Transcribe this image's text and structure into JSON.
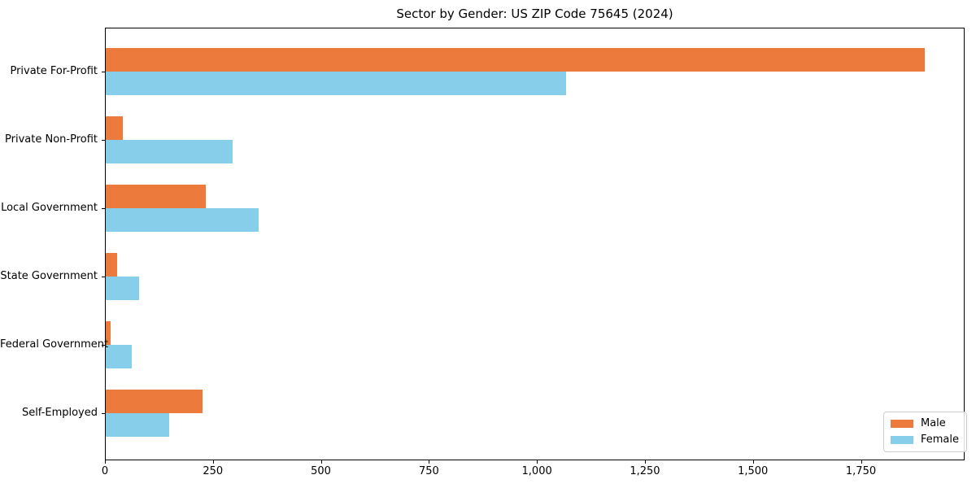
{
  "title": "Sector by Gender: US ZIP Code 75645 (2024)",
  "chart_data": {
    "type": "bar",
    "orientation": "horizontal",
    "title": "Sector by Gender: US ZIP Code 75645 (2024)",
    "categories": [
      "Private For-Profit",
      "Private Non-Profit",
      "Local Government",
      "State Government",
      "Federal Government",
      "Self-Employed"
    ],
    "series": [
      {
        "name": "Male",
        "color": "#ec7a3c",
        "values": [
          1895,
          40,
          232,
          26,
          11,
          224
        ]
      },
      {
        "name": "Female",
        "color": "#87ceeb",
        "values": [
          1065,
          294,
          354,
          77,
          60,
          147
        ]
      }
    ],
    "xlabel": "",
    "ylabel": "",
    "xlim": [
      0,
      1990
    ],
    "xticks": [
      0,
      250,
      500,
      750,
      1000,
      1250,
      1500,
      1750
    ],
    "xtick_labels": [
      "0",
      "250",
      "500",
      "750",
      "1,000",
      "1,250",
      "1,500",
      "1,750"
    ],
    "grid": false,
    "legend_position": "lower right",
    "bar_height": 0.35,
    "axis_color": "#000000",
    "legend_border_color": "#cccccc"
  }
}
